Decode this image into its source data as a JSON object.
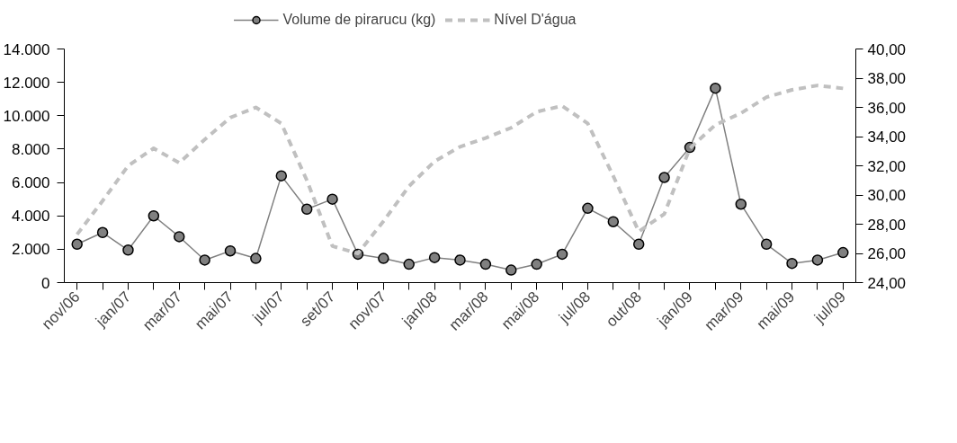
{
  "chart_data": {
    "type": "line",
    "categories": [
      "nov/06",
      null,
      "jan/07",
      null,
      "mar/07",
      null,
      "mai/07",
      null,
      "jul/07",
      null,
      "set/07",
      null,
      "nov/07",
      null,
      "jan/08",
      null,
      "mar/08",
      null,
      "mai/08",
      null,
      "jul/08",
      null,
      "out/08",
      null,
      "jan/09",
      null,
      "mar/09",
      null,
      "mai/09",
      null,
      "jul/09"
    ],
    "series": [
      {
        "name": "Volume de pirarucu (kg)",
        "color": "#808080",
        "marker": "circle",
        "line_style": "solid",
        "values": [
          2300,
          3000,
          1950,
          4000,
          2750,
          1350,
          1900,
          1450,
          6400,
          4400,
          5000,
          1700,
          1450,
          1100,
          1500,
          1350,
          1100,
          750,
          1100,
          1700,
          4450,
          3650,
          2300,
          6300,
          8100,
          11650,
          4700,
          2300,
          1150,
          1350,
          1800
        ]
      },
      {
        "name": "Nível D'água",
        "color": "#c0c0c0",
        "marker": "none",
        "line_style": "dashed",
        "axis": "y2",
        "values": [
          27.3,
          29.6,
          32.0,
          33.2,
          32.2,
          33.8,
          35.3,
          36.0,
          34.9,
          31.0,
          26.5,
          26.0,
          28.2,
          30.6,
          32.3,
          33.3,
          33.9,
          34.6,
          35.7,
          36.1,
          34.9,
          31.3,
          27.5,
          28.7,
          33.2,
          34.8,
          35.6,
          36.7,
          37.2,
          37.5,
          37.3
        ]
      }
    ],
    "ylim": [
      0,
      14000
    ],
    "yticks": [
      {
        "value": 0,
        "label": "0"
      },
      {
        "value": 2000,
        "label": "2.000"
      },
      {
        "value": 4000,
        "label": "4.000"
      },
      {
        "value": 6000,
        "label": "6.000"
      },
      {
        "value": 8000,
        "label": "8.000"
      },
      {
        "value": 10000,
        "label": "10.000"
      },
      {
        "value": 12000,
        "label": "12.000"
      },
      {
        "value": 14000,
        "label": "14.000"
      }
    ],
    "y2lim": [
      24,
      40
    ],
    "y2ticks": [
      {
        "value": 24,
        "label": "24,00"
      },
      {
        "value": 26,
        "label": "26,00"
      },
      {
        "value": 28,
        "label": "28,00"
      },
      {
        "value": 30,
        "label": "30,00"
      },
      {
        "value": 32,
        "label": "32,00"
      },
      {
        "value": 34,
        "label": "34,00"
      },
      {
        "value": 36,
        "label": "36,00"
      },
      {
        "value": 38,
        "label": "38,00"
      },
      {
        "value": 40,
        "label": "40,00"
      }
    ],
    "grid": false,
    "legend": "top"
  }
}
